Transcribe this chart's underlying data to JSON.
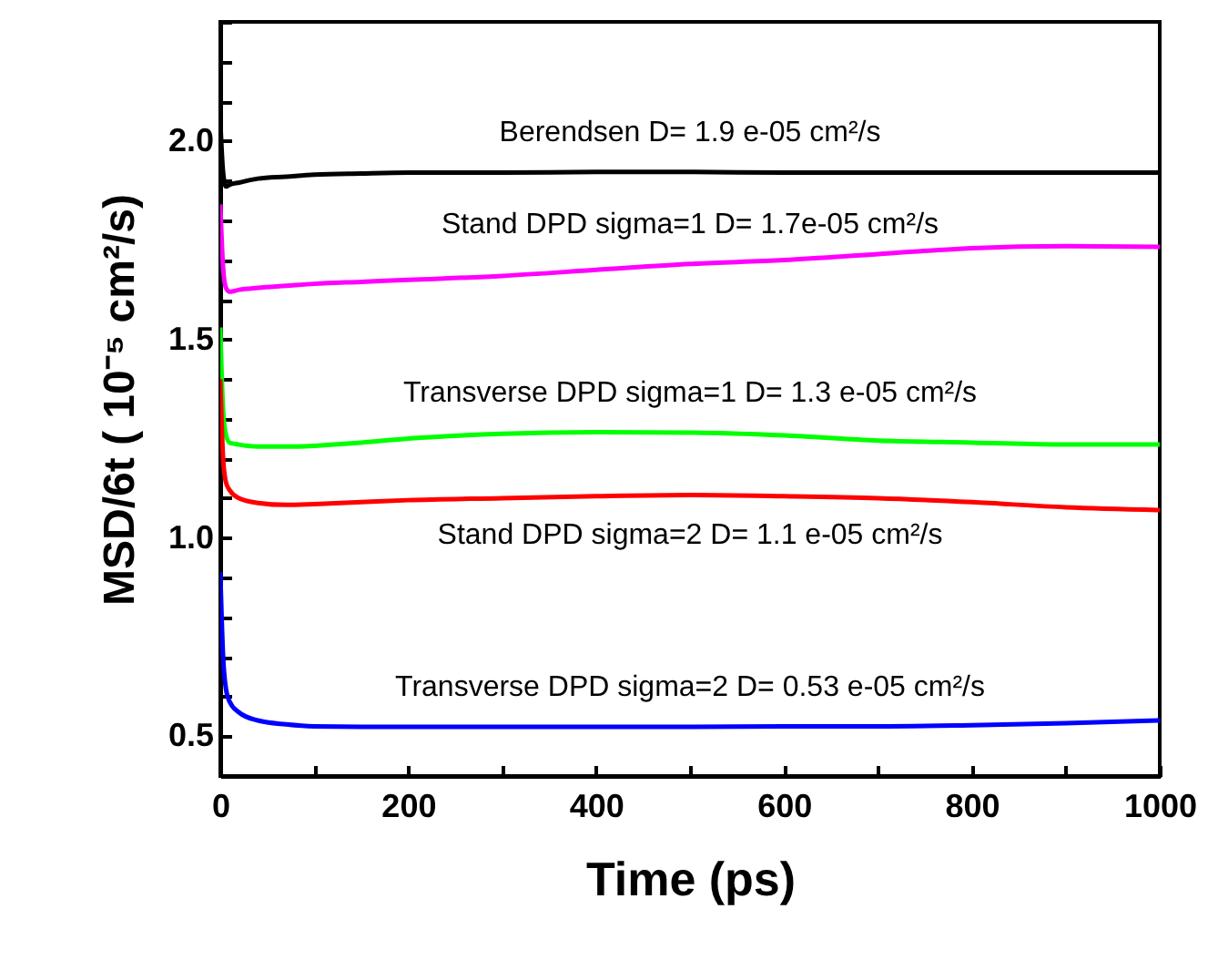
{
  "chart_data": {
    "type": "line",
    "xlabel": "Time (ps)",
    "ylabel": "MSD/6t ( 10⁻⁵ cm²/s)",
    "x": [
      0,
      3,
      6,
      10,
      20,
      40,
      70,
      100,
      150,
      200,
      300,
      400,
      500,
      600,
      700,
      800,
      900,
      1000
    ],
    "xlim": [
      0,
      1000
    ],
    "ylim": [
      0.4,
      2.3
    ],
    "xticks": [
      0,
      {
        "value": 100,
        "label": null
      },
      200,
      {
        "value": 300,
        "label": null
      },
      400,
      {
        "value": 500,
        "label": null
      },
      600,
      {
        "value": 700,
        "label": null
      },
      800,
      {
        "value": 900,
        "label": null
      },
      1000
    ],
    "yticks": [
      {
        "value": 0.4,
        "label": null
      },
      {
        "value": 0.5,
        "label": "0.5"
      },
      {
        "value": 0.6,
        "label": null
      },
      {
        "value": 0.7,
        "label": null
      },
      {
        "value": 0.8,
        "label": null
      },
      {
        "value": 0.9,
        "label": null
      },
      {
        "value": 1,
        "label": "1.0"
      },
      {
        "value": 1.1,
        "label": null
      },
      {
        "value": 1.2,
        "label": null
      },
      {
        "value": 1.3,
        "label": null
      },
      {
        "value": 1.4,
        "label": null
      },
      {
        "value": 1.5,
        "label": "1.5"
      },
      {
        "value": 1.6,
        "label": null
      },
      {
        "value": 1.7,
        "label": null
      },
      {
        "value": 1.8,
        "label": null
      },
      {
        "value": 1.9,
        "label": null
      },
      {
        "value": 2,
        "label": "2.0"
      },
      {
        "value": 2.1,
        "label": null
      },
      {
        "value": 2.2,
        "label": null
      },
      {
        "value": 2.3,
        "label": null
      }
    ],
    "series": [
      {
        "name": "Berendsen  D= 1.9 e-05 cm²/s",
        "color": "#000000",
        "values": [
          2.05,
          1.92,
          1.885,
          1.89,
          1.895,
          1.905,
          1.91,
          1.915,
          1.918,
          1.92,
          1.92,
          1.922,
          1.922,
          1.92,
          1.92,
          1.92,
          1.92,
          1.92
        ]
      },
      {
        "name": "Stand DPD sigma=1 D= 1.7e-05 cm²/s",
        "color": "#ff00ff",
        "values": [
          1.84,
          1.68,
          1.63,
          1.62,
          1.625,
          1.63,
          1.635,
          1.64,
          1.645,
          1.65,
          1.66,
          1.675,
          1.69,
          1.7,
          1.715,
          1.73,
          1.735,
          1.733
        ]
      },
      {
        "name": "Transverse DPD sigma=1 D= 1.3 e-05 cm²/s",
        "color": "#00ff00",
        "values": [
          1.53,
          1.32,
          1.26,
          1.24,
          1.235,
          1.23,
          1.23,
          1.232,
          1.24,
          1.25,
          1.262,
          1.266,
          1.265,
          1.258,
          1.245,
          1.24,
          1.235,
          1.235
        ]
      },
      {
        "name": "Stand DPD sigma=2 D= 1.1 e-05 cm²/s",
        "color": "#ff0000",
        "values": [
          1.4,
          1.2,
          1.14,
          1.12,
          1.1,
          1.088,
          1.083,
          1.085,
          1.09,
          1.095,
          1.1,
          1.105,
          1.108,
          1.105,
          1.1,
          1.09,
          1.077,
          1.07
        ]
      },
      {
        "name": "Transverse DPD sigma=2 D= 0.53 e-05 cm²/s",
        "color": "#0000ff",
        "values": [
          0.914,
          0.7,
          0.62,
          0.587,
          0.56,
          0.54,
          0.53,
          0.525,
          0.524,
          0.524,
          0.524,
          0.524,
          0.524,
          0.525,
          0.525,
          0.528,
          0.533,
          0.54
        ]
      }
    ]
  }
}
